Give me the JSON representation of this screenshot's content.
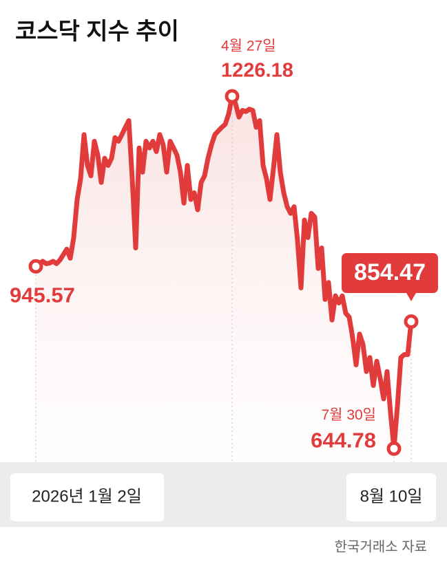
{
  "chart_data": {
    "type": "line",
    "title": "코스닥 지수 추이",
    "source": "한국거래소 자료",
    "color": "#e23b3b",
    "ylim": [
      560,
      1300
    ],
    "categories": [
      "2026년 1월 2일",
      null,
      null,
      null,
      null,
      null,
      null,
      null,
      null,
      null,
      null,
      null,
      null,
      null,
      null,
      null,
      null,
      null,
      null,
      null,
      null,
      null,
      null,
      null,
      null,
      null,
      null,
      null,
      null,
      null,
      null,
      null,
      null,
      null,
      null,
      null,
      null,
      null,
      null,
      null,
      null,
      null,
      null,
      null,
      null,
      null,
      null,
      null,
      null,
      null,
      null,
      null,
      null,
      null,
      null,
      null,
      null,
      "4월 27일",
      null,
      null,
      null,
      null,
      null,
      null,
      null,
      null,
      null,
      null,
      null,
      null,
      null,
      null,
      null,
      null,
      null,
      null,
      null,
      null,
      null,
      null,
      null,
      null,
      null,
      null,
      null,
      null,
      null,
      null,
      null,
      null,
      null,
      null,
      null,
      null,
      null,
      null,
      null,
      null,
      null,
      null,
      null,
      null,
      null,
      null,
      "7월 30일",
      null,
      null,
      null,
      null,
      "8월 10일"
    ],
    "values": [
      945.57,
      950,
      954,
      950,
      951,
      954,
      950,
      956,
      965,
      974,
      959,
      993,
      1056,
      1090,
      1163,
      1112,
      1095,
      1152,
      1129,
      1084,
      1124,
      1112,
      1124,
      1158,
      1152,
      1163,
      1175,
      1186,
      1090,
      976,
      1141,
      1101,
      1152,
      1141,
      1152,
      1135,
      1163,
      1146,
      1101,
      1152,
      1141,
      1129,
      1101,
      1050,
      1112,
      1056,
      1067,
      1039,
      1084,
      1095,
      1124,
      1146,
      1163,
      1169,
      1175,
      1180,
      1197,
      1226.18,
      1214,
      1192,
      1203,
      1201,
      1205,
      1203,
      1175,
      1186,
      1112,
      1090,
      1056,
      1107,
      1163,
      1101,
      1067,
      1044,
      1033,
      1044,
      988,
      910,
      1022,
      993,
      1033,
      1027,
      942,
      976,
      891,
      919,
      857,
      897,
      885,
      897,
      868,
      862,
      828,
      783,
      834,
      817,
      772,
      795,
      749,
      789,
      761,
      727,
      772,
      704,
      644.78,
      715,
      795,
      800,
      800,
      854.47
    ]
  }
}
